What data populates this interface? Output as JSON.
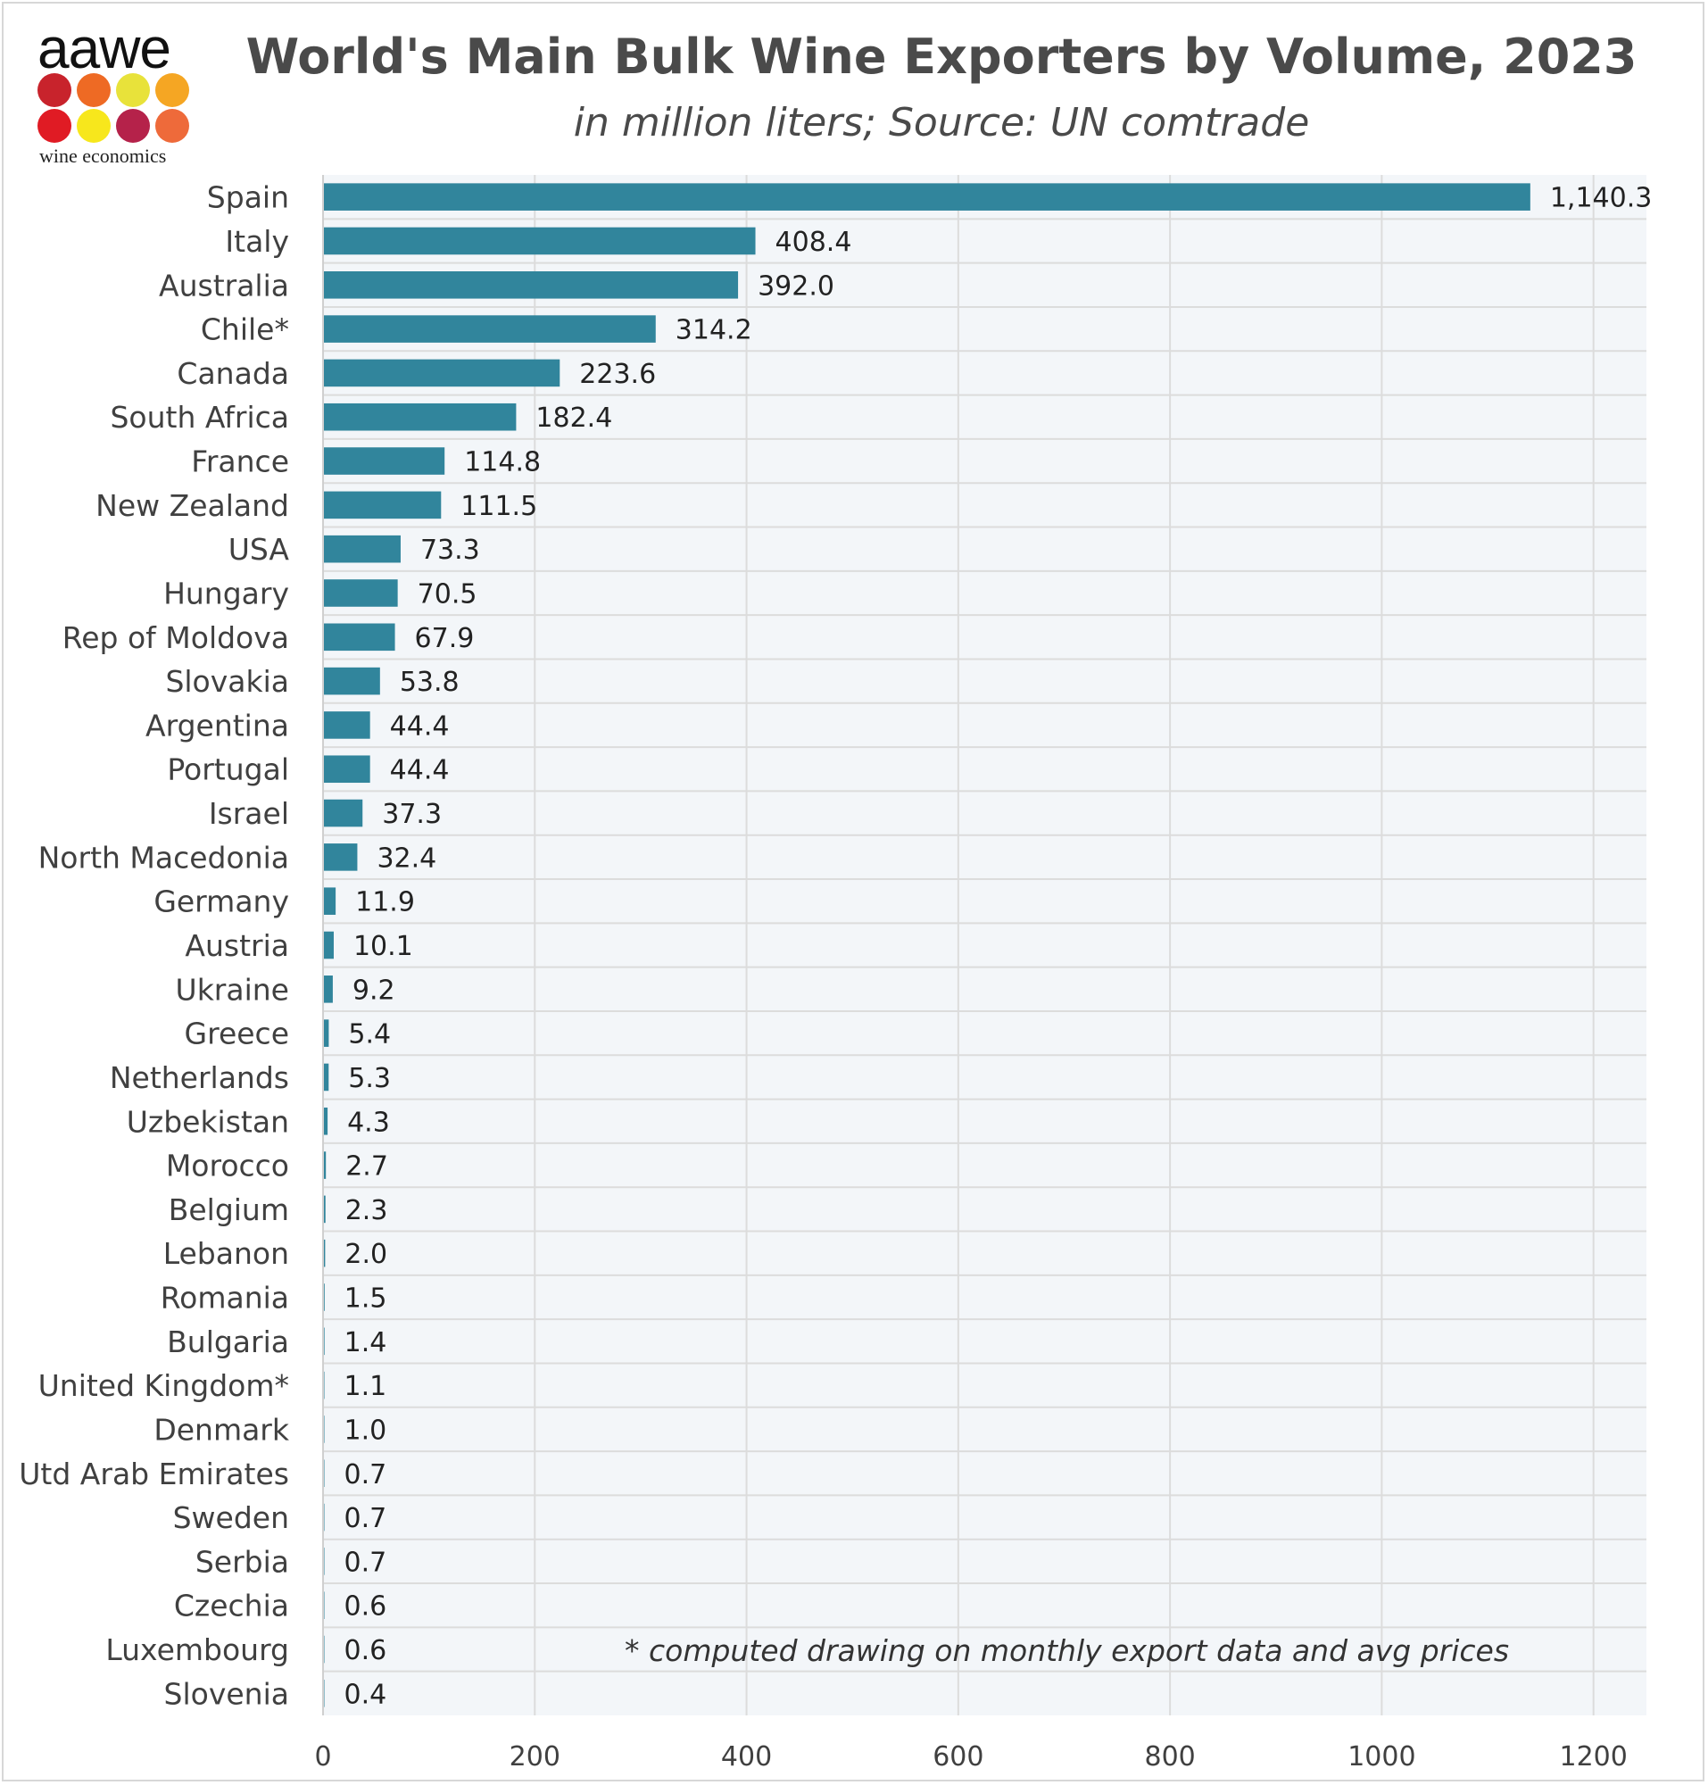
{
  "logo": {
    "word": "aawe",
    "subtitle": "wine economics",
    "dot_colors": [
      "#c8232c",
      "#ee6a24",
      "#e8e23a",
      "#f5a623",
      "#e01b24",
      "#f7e71c",
      "#b5224a",
      "#ee6a3a"
    ]
  },
  "colors": {
    "bar": "#31859c",
    "plot_bg": "#f3f6f9",
    "grid": "#dcdcdc",
    "row_line": "#ffffff"
  },
  "chart_data": {
    "type": "bar",
    "orientation": "horizontal",
    "title": "World's Main Bulk Wine Exporters by Volume, 2023",
    "subtitle": "in million liters; Source: UN comtrade",
    "categories": [
      "Spain",
      "Italy",
      "Australia",
      "Chile*",
      "Canada",
      "South Africa",
      "France",
      "New Zealand",
      "USA",
      "Hungary",
      "Rep of Moldova",
      "Slovakia",
      "Argentina",
      "Portugal",
      "Israel",
      "North Macedonia",
      "Germany",
      "Austria",
      "Ukraine",
      "Greece",
      "Netherlands",
      "Uzbekistan",
      "Morocco",
      "Belgium",
      "Lebanon",
      "Romania",
      "Bulgaria",
      "United Kingdom*",
      "Denmark",
      "Utd Arab Emirates",
      "Sweden",
      "Serbia",
      "Czechia",
      "Luxembourg",
      "Slovenia"
    ],
    "values": [
      1140.3,
      408.4,
      392.0,
      314.2,
      223.6,
      182.4,
      114.8,
      111.5,
      73.3,
      70.5,
      67.9,
      53.8,
      44.4,
      44.4,
      37.3,
      32.4,
      11.9,
      10.1,
      9.2,
      5.4,
      5.3,
      4.3,
      2.7,
      2.3,
      2.0,
      1.5,
      1.4,
      1.1,
      1.0,
      0.7,
      0.7,
      0.7,
      0.6,
      0.6,
      0.4
    ],
    "value_labels": [
      "1,140.3",
      "408.4",
      "392.0",
      "314.2",
      "223.6",
      "182.4",
      "114.8",
      "111.5",
      "73.3",
      "70.5",
      "67.9",
      "53.8",
      "44.4",
      "44.4",
      "37.3",
      "32.4",
      "11.9",
      "10.1",
      "9.2",
      "5.4",
      "5.3",
      "4.3",
      "2.7",
      "2.3",
      "2.0",
      "1.5",
      "1.4",
      "1.1",
      "1.0",
      "0.7",
      "0.7",
      "0.7",
      "0.6",
      "0.6",
      "0.4"
    ],
    "xlim": [
      0,
      1250
    ],
    "xticks": [
      0,
      200,
      400,
      600,
      800,
      1000,
      1200
    ],
    "xlabel": "",
    "ylabel": "",
    "grid": true,
    "legend": "none",
    "footnote": "* computed drawing on monthly export data and avg prices"
  }
}
